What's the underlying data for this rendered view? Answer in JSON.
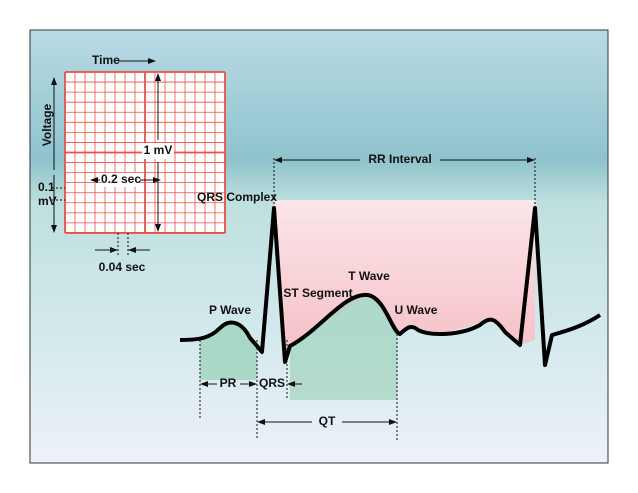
{
  "grid": {
    "time": "Time",
    "voltage": "Voltage",
    "amplitude": "1 mV",
    "big_box": "0.2 sec",
    "small_box_voltage": [
      "0.1",
      "mV"
    ],
    "small_box_time": "0.04 sec"
  },
  "waves": {
    "qrs_complex": "QRS Complex",
    "p_wave": "P Wave",
    "st_segment": "ST Segment",
    "t_wave": "T Wave",
    "u_wave": "U Wave"
  },
  "intervals": {
    "rr": "RR Interval",
    "pr": "PR",
    "qrs": "QRS",
    "qt": "QT"
  }
}
